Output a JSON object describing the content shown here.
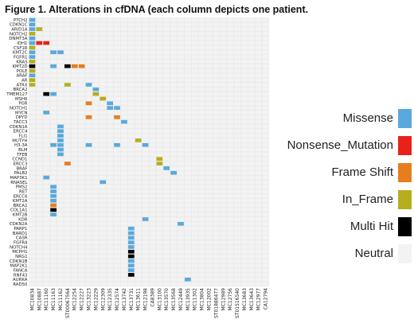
{
  "title": "Figure 1. Alterations in cfDNA (each column depicts one patient.",
  "colors": {
    "Missense": "#5aa9dc",
    "Nonsense_Mutation": "#e8221b",
    "Frame Shift": "#e67e1e",
    "In_Frame": "#b7ad1f",
    "Multi Hit": "#000000",
    "Neutral": "#f3f3f3"
  },
  "legend": {
    "items": [
      {
        "label": "Missense",
        "color": "#5aa9dc"
      },
      {
        "label": "Nonsense_Mutation",
        "color": "#e8221b"
      },
      {
        "label": "Frame Shift",
        "color": "#e67e1e"
      },
      {
        "label": "In_Frame",
        "color": "#b7ad1f"
      },
      {
        "label": "Multi Hit",
        "color": "#000000"
      },
      {
        "label": "Neutral",
        "color": "#f3f3f3"
      }
    ]
  },
  "chart_data": {
    "type": "heatmap",
    "title": "Figure 1. Alterations in cfDNA (each column depicts one patient.",
    "genes": [
      "PTCH2",
      "CDKN1C",
      "ARID1A",
      "NOTCH2",
      "DNMT3A",
      "IDH1",
      "CSF1R",
      "KMT2C",
      "FGFR1",
      "KRAS",
      "KMT2D",
      "POLE",
      "ARAF",
      "AR",
      "ATRX",
      "BRCA2",
      "TMEM127",
      "MSH6",
      "PGR",
      "NOTCH1",
      "MYCN",
      "DPYD",
      "TACC3",
      "CDKN1A",
      "ERCC4",
      "FLI1",
      "MUTYH",
      "H3-3A",
      "BLM",
      "TFEB",
      "CCND1",
      "ERCC3",
      "BRAF",
      "PALB2",
      "MAP3K1",
      "RNASEL",
      "PMS2",
      "RET",
      "ERCC6",
      "KMT2A",
      "BRCA1",
      "COL1A1",
      "KMT2B",
      "KDR",
      "CDKN2A",
      "PARP1",
      "BARD1",
      "CASR",
      "FGFR4",
      "NOTCH4",
      "MCPH1",
      "NRG1",
      "CDKN1B",
      "MAP2K1",
      "FANCA",
      "RNF43",
      "AURKA",
      "RAD50"
    ],
    "patients": [
      "MC10834",
      "MC10887",
      "MC11160",
      "MC11163",
      "MC11162",
      "ST00067564",
      "MC12254",
      "MC12227",
      "MC13223",
      "MC12229",
      "MC12309",
      "MC12335",
      "MC12574",
      "MC13742",
      "MC13731",
      "MC13611",
      "MC12198",
      "CA8389",
      "MC13100",
      "MC13570",
      "MC13568",
      "MC12449",
      "MC13935",
      "MC11302",
      "MC13804",
      "MC12002",
      "ST01886477",
      "MC12989",
      "MC12756",
      "ST01516540",
      "MC13683",
      "MC13643",
      "MC12977",
      "CA12794"
    ],
    "alterations": [
      {
        "gene": "PTCH2",
        "patient": "MC10834",
        "type": "Missense"
      },
      {
        "gene": "CDKN1C",
        "patient": "MC10834",
        "type": "Missense"
      },
      {
        "gene": "ARID1A",
        "patient": "MC10834",
        "type": "Missense"
      },
      {
        "gene": "ARID1A",
        "patient": "MC10887",
        "type": "In_Frame"
      },
      {
        "gene": "NOTCH2",
        "patient": "MC10834",
        "type": "In_Frame"
      },
      {
        "gene": "DNMT3A",
        "patient": "MC10834",
        "type": "Missense"
      },
      {
        "gene": "IDH1",
        "patient": "MC10834",
        "type": "Missense"
      },
      {
        "gene": "IDH1",
        "patient": "MC10887",
        "type": "Nonsense_Mutation"
      },
      {
        "gene": "IDH1",
        "patient": "MC11160",
        "type": "Nonsense_Mutation"
      },
      {
        "gene": "CSF1R",
        "patient": "MC10834",
        "type": "In_Frame"
      },
      {
        "gene": "KMT2C",
        "patient": "MC10834",
        "type": "Missense"
      },
      {
        "gene": "KMT2C",
        "patient": "MC11163",
        "type": "Missense"
      },
      {
        "gene": "KMT2C",
        "patient": "MC11162",
        "type": "Missense"
      },
      {
        "gene": "FGFR1",
        "patient": "MC10834",
        "type": "Missense"
      },
      {
        "gene": "KRAS",
        "patient": "MC10834",
        "type": "In_Frame"
      },
      {
        "gene": "KMT2D",
        "patient": "MC10834",
        "type": "Multi Hit"
      },
      {
        "gene": "KMT2D",
        "patient": "MC11163",
        "type": "Missense"
      },
      {
        "gene": "KMT2D",
        "patient": "ST00067564",
        "type": "Multi Hit"
      },
      {
        "gene": "KMT2D",
        "patient": "MC12254",
        "type": "Frame Shift"
      },
      {
        "gene": "KMT2D",
        "patient": "MC12227",
        "type": "Frame Shift"
      },
      {
        "gene": "POLE",
        "patient": "MC10834",
        "type": "In_Frame"
      },
      {
        "gene": "ARAF",
        "patient": "MC10834",
        "type": "Missense"
      },
      {
        "gene": "AR",
        "patient": "MC10834",
        "type": "In_Frame"
      },
      {
        "gene": "ATRX",
        "patient": "MC10834",
        "type": "In_Frame"
      },
      {
        "gene": "ATRX",
        "patient": "ST00067564",
        "type": "In_Frame"
      },
      {
        "gene": "ATRX",
        "patient": "MC13223",
        "type": "Missense"
      },
      {
        "gene": "BRCA2",
        "patient": "MC12229",
        "type": "Missense"
      },
      {
        "gene": "TMEM127",
        "patient": "MC11160",
        "type": "Multi Hit"
      },
      {
        "gene": "TMEM127",
        "patient": "MC11163",
        "type": "Missense"
      },
      {
        "gene": "TMEM127",
        "patient": "MC12229",
        "type": "In_Frame"
      },
      {
        "gene": "MSH6",
        "patient": "MC12309",
        "type": "In_Frame"
      },
      {
        "gene": "PGR",
        "patient": "MC13223",
        "type": "Frame Shift"
      },
      {
        "gene": "PGR",
        "patient": "MC12335",
        "type": "Missense"
      },
      {
        "gene": "NOTCH1",
        "patient": "MC12335",
        "type": "Missense"
      },
      {
        "gene": "NOTCH1",
        "patient": "MC12574",
        "type": "Missense"
      },
      {
        "gene": "MYCN",
        "patient": "MC11160",
        "type": "Missense"
      },
      {
        "gene": "DPYD",
        "patient": "MC13223",
        "type": "Frame Shift"
      },
      {
        "gene": "DPYD",
        "patient": "MC12574",
        "type": "Frame Shift"
      },
      {
        "gene": "TACC3",
        "patient": "MC13742",
        "type": "Missense"
      },
      {
        "gene": "CDKN1A",
        "patient": "MC11162",
        "type": "Missense"
      },
      {
        "gene": "ERCC4",
        "patient": "MC11162",
        "type": "Missense"
      },
      {
        "gene": "FLI1",
        "patient": "MC11162",
        "type": "Missense"
      },
      {
        "gene": "MUTYH",
        "patient": "MC11162",
        "type": "Missense"
      },
      {
        "gene": "MUTYH",
        "patient": "MC13611",
        "type": "In_Frame"
      },
      {
        "gene": "H3-3A",
        "patient": "MC11163",
        "type": "Missense"
      },
      {
        "gene": "H3-3A",
        "patient": "MC11162",
        "type": "Missense"
      },
      {
        "gene": "H3-3A",
        "patient": "MC13223",
        "type": "Missense"
      },
      {
        "gene": "H3-3A",
        "patient": "MC12574",
        "type": "Missense"
      },
      {
        "gene": "H3-3A",
        "patient": "MC12198",
        "type": "Missense"
      },
      {
        "gene": "BLM",
        "patient": "MC11162",
        "type": "Missense"
      },
      {
        "gene": "TFEB",
        "patient": "MC11162",
        "type": "Missense"
      },
      {
        "gene": "CCND1",
        "patient": "MC13100",
        "type": "In_Frame"
      },
      {
        "gene": "ERCC3",
        "patient": "ST00067564",
        "type": "Frame Shift"
      },
      {
        "gene": "ERCC3",
        "patient": "MC13100",
        "type": "In_Frame"
      },
      {
        "gene": "BRAF",
        "patient": "MC13570",
        "type": "Missense"
      },
      {
        "gene": "PALB2",
        "patient": "MC13568",
        "type": "Missense"
      },
      {
        "gene": "MAP3K1",
        "patient": "MC11160",
        "type": "Missense"
      },
      {
        "gene": "RNASEL",
        "patient": "MC12309",
        "type": "Missense"
      },
      {
        "gene": "PMS2",
        "patient": "MC11163",
        "type": "Missense"
      },
      {
        "gene": "RET",
        "patient": "MC11163",
        "type": "Missense"
      },
      {
        "gene": "ERCC6",
        "patient": "MC11163",
        "type": "Missense"
      },
      {
        "gene": "KMT2A",
        "patient": "MC11163",
        "type": "Missense"
      },
      {
        "gene": "BRCA1",
        "patient": "MC11163",
        "type": "Frame Shift"
      },
      {
        "gene": "COL1A1",
        "patient": "MC11163",
        "type": "Multi Hit"
      },
      {
        "gene": "KMT2B",
        "patient": "MC11163",
        "type": "Missense"
      },
      {
        "gene": "KDR",
        "patient": "MC12198",
        "type": "Missense"
      },
      {
        "gene": "CDKN2A",
        "patient": "MC12449",
        "type": "Missense"
      },
      {
        "gene": "PARP1",
        "patient": "MC13731",
        "type": "Missense"
      },
      {
        "gene": "BARD1",
        "patient": "MC13731",
        "type": "Missense"
      },
      {
        "gene": "CASR",
        "patient": "MC13731",
        "type": "Missense"
      },
      {
        "gene": "FGFR4",
        "patient": "MC13731",
        "type": "Missense"
      },
      {
        "gene": "NOTCH4",
        "patient": "MC13731",
        "type": "Missense"
      },
      {
        "gene": "MCPH1",
        "patient": "MC13731",
        "type": "Multi Hit"
      },
      {
        "gene": "NRG1",
        "patient": "MC13731",
        "type": "Multi Hit"
      },
      {
        "gene": "CDKN1B",
        "patient": "MC13731",
        "type": "Missense"
      },
      {
        "gene": "MAP2K1",
        "patient": "MC13731",
        "type": "Missense"
      },
      {
        "gene": "FANCA",
        "patient": "MC13731",
        "type": "Missense"
      },
      {
        "gene": "RNF43",
        "patient": "MC13731",
        "type": "Multi Hit"
      },
      {
        "gene": "AURKA",
        "patient": "MC13935",
        "type": "Missense"
      }
    ]
  }
}
